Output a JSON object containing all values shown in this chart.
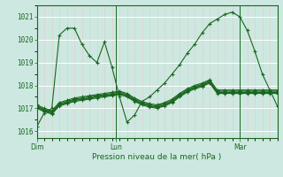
{
  "title": "Pression niveau de la mer( hPa )",
  "ylim": [
    1015.7,
    1021.5
  ],
  "yticks": [
    1016,
    1017,
    1018,
    1019,
    1020,
    1021
  ],
  "bg_color": "#cce8e0",
  "plot_bg_color": "#cce8e0",
  "line_color": "#1a6620",
  "marker": "+",
  "marker_size": 3,
  "linewidth": 0.8,
  "xtick_positions": [
    0,
    16,
    32
  ],
  "xtick_labels": [
    "Dim",
    "Lun",
    "Mar"
  ],
  "n_points_per_day": 16,
  "series": [
    [
      1016.2,
      1016.8,
      1017.0,
      1020.2,
      1020.5,
      1020.5,
      1019.8,
      1019.3,
      1019.0,
      1019.9,
      1018.8,
      1017.5,
      1016.4,
      1016.7,
      1017.3,
      1017.5,
      1017.8,
      1018.1,
      1018.5,
      1018.9,
      1019.4,
      1019.8,
      1020.3,
      1020.7,
      1020.9,
      1021.1,
      1021.2,
      1021.0,
      1020.4,
      1019.5,
      1018.5,
      1017.8,
      1017.1
    ],
    [
      1017.0,
      1016.85,
      1016.75,
      1017.1,
      1017.2,
      1017.3,
      1017.35,
      1017.4,
      1017.45,
      1017.5,
      1017.55,
      1017.6,
      1017.5,
      1017.3,
      1017.15,
      1017.05,
      1017.0,
      1017.1,
      1017.25,
      1017.5,
      1017.7,
      1017.85,
      1017.95,
      1018.1,
      1017.65,
      1017.65,
      1017.65,
      1017.65,
      1017.65,
      1017.65,
      1017.65,
      1017.65,
      1017.65
    ],
    [
      1017.05,
      1016.9,
      1016.8,
      1017.15,
      1017.25,
      1017.35,
      1017.4,
      1017.45,
      1017.5,
      1017.55,
      1017.6,
      1017.65,
      1017.55,
      1017.35,
      1017.2,
      1017.1,
      1017.05,
      1017.15,
      1017.3,
      1017.55,
      1017.75,
      1017.9,
      1018.0,
      1018.15,
      1017.7,
      1017.7,
      1017.7,
      1017.7,
      1017.7,
      1017.7,
      1017.7,
      1017.7,
      1017.7
    ],
    [
      1017.1,
      1016.95,
      1016.85,
      1017.2,
      1017.3,
      1017.4,
      1017.45,
      1017.5,
      1017.55,
      1017.6,
      1017.65,
      1017.7,
      1017.6,
      1017.4,
      1017.25,
      1017.15,
      1017.1,
      1017.2,
      1017.35,
      1017.6,
      1017.8,
      1017.95,
      1018.05,
      1018.2,
      1017.75,
      1017.75,
      1017.75,
      1017.75,
      1017.75,
      1017.75,
      1017.75,
      1017.75,
      1017.75
    ],
    [
      1017.15,
      1017.0,
      1016.9,
      1017.25,
      1017.35,
      1017.45,
      1017.5,
      1017.55,
      1017.6,
      1017.65,
      1017.7,
      1017.75,
      1017.65,
      1017.45,
      1017.3,
      1017.2,
      1017.15,
      1017.25,
      1017.4,
      1017.65,
      1017.85,
      1018.0,
      1018.1,
      1018.25,
      1017.8,
      1017.8,
      1017.8,
      1017.8,
      1017.8,
      1017.8,
      1017.8,
      1017.8,
      1017.8
    ],
    [
      1017.05,
      1016.9,
      1016.8,
      1017.15,
      1017.25,
      1017.35,
      1017.4,
      1017.45,
      1017.5,
      1017.55,
      1017.6,
      1017.65,
      1017.55,
      1017.35,
      1017.2,
      1017.1,
      1017.05,
      1017.15,
      1017.3,
      1017.55,
      1017.75,
      1017.9,
      1018.0,
      1018.15,
      1017.7,
      1017.7,
      1017.7,
      1017.7,
      1017.7,
      1017.7,
      1017.7,
      1017.7,
      1017.7
    ]
  ]
}
